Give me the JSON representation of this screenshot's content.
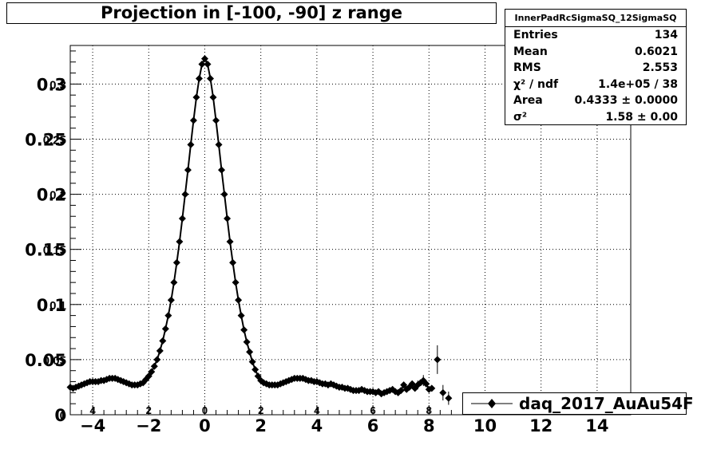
{
  "chart_data": {
    "type": "scatter",
    "title": "Projection in [-100, -90] z range",
    "xlabel": "",
    "ylabel": "",
    "xlim": [
      -4.8,
      15.2
    ],
    "ylim": [
      0,
      0.335
    ],
    "grid": true,
    "legend_position": "bottom-right",
    "x_tick_labels_overlaid": [
      "4",
      "2",
      "0",
      "2",
      "4",
      "6",
      "8",
      "10",
      "12",
      "14"
    ],
    "x_ticks_overlaid": [
      -4,
      -2,
      0,
      2,
      4,
      6,
      8,
      10,
      12,
      14
    ],
    "x_tick_labels": [
      "−4",
      "−2",
      "0",
      "2",
      "4",
      "6",
      "8",
      "10",
      "12",
      "14"
    ],
    "x_ticks": [
      -4,
      -2,
      0,
      2,
      4,
      6,
      8,
      10,
      12,
      14
    ],
    "y_tick_labels_back": [
      "0",
      "0.05",
      "0.1",
      "0.15",
      "0.2",
      "0.25",
      "0.3"
    ],
    "y_tick_labels_front": [
      "0",
      "0.05",
      "0.1",
      "0.15",
      "0.2",
      "0.25",
      "0.3"
    ],
    "y_ticks": [
      0,
      0.05,
      0.1,
      0.15,
      0.2,
      0.25,
      0.3
    ],
    "series": [
      {
        "name": "daq_2017_AuAu54F",
        "color": "#000000",
        "points": [
          [
            -4.8,
            0.025
          ],
          [
            -4.7,
            0.024
          ],
          [
            -4.6,
            0.025
          ],
          [
            -4.5,
            0.026
          ],
          [
            -4.4,
            0.027
          ],
          [
            -4.3,
            0.028
          ],
          [
            -4.2,
            0.029
          ],
          [
            -4.1,
            0.03
          ],
          [
            -4.0,
            0.03
          ],
          [
            -3.9,
            0.03
          ],
          [
            -3.8,
            0.03
          ],
          [
            -3.7,
            0.031
          ],
          [
            -3.6,
            0.031
          ],
          [
            -3.5,
            0.032
          ],
          [
            -3.4,
            0.033
          ],
          [
            -3.3,
            0.033
          ],
          [
            -3.2,
            0.033
          ],
          [
            -3.1,
            0.032
          ],
          [
            -3.0,
            0.031
          ],
          [
            -2.9,
            0.03
          ],
          [
            -2.8,
            0.029
          ],
          [
            -2.7,
            0.028
          ],
          [
            -2.6,
            0.027
          ],
          [
            -2.5,
            0.027
          ],
          [
            -2.4,
            0.027
          ],
          [
            -2.3,
            0.028
          ],
          [
            -2.2,
            0.029
          ],
          [
            -2.1,
            0.032
          ],
          [
            -2.0,
            0.035
          ],
          [
            -1.9,
            0.039
          ],
          [
            -1.8,
            0.044
          ],
          [
            -1.7,
            0.05
          ],
          [
            -1.6,
            0.058
          ],
          [
            -1.5,
            0.067
          ],
          [
            -1.4,
            0.078
          ],
          [
            -1.3,
            0.09
          ],
          [
            -1.2,
            0.104
          ],
          [
            -1.1,
            0.12
          ],
          [
            -1.0,
            0.138
          ],
          [
            -0.9,
            0.157
          ],
          [
            -0.8,
            0.178
          ],
          [
            -0.7,
            0.2
          ],
          [
            -0.6,
            0.222
          ],
          [
            -0.5,
            0.245
          ],
          [
            -0.4,
            0.267
          ],
          [
            -0.3,
            0.288
          ],
          [
            -0.2,
            0.305
          ],
          [
            -0.1,
            0.318
          ],
          [
            0.0,
            0.323
          ],
          [
            0.1,
            0.318
          ],
          [
            0.2,
            0.305
          ],
          [
            0.3,
            0.288
          ],
          [
            0.4,
            0.267
          ],
          [
            0.5,
            0.245
          ],
          [
            0.6,
            0.222
          ],
          [
            0.7,
            0.2
          ],
          [
            0.8,
            0.178
          ],
          [
            0.9,
            0.157
          ],
          [
            1.0,
            0.138
          ],
          [
            1.1,
            0.12
          ],
          [
            1.2,
            0.104
          ],
          [
            1.3,
            0.09
          ],
          [
            1.4,
            0.077
          ],
          [
            1.5,
            0.066
          ],
          [
            1.6,
            0.057
          ],
          [
            1.7,
            0.048
          ],
          [
            1.8,
            0.041
          ],
          [
            1.9,
            0.035
          ],
          [
            2.0,
            0.031
          ],
          [
            2.1,
            0.029
          ],
          [
            2.2,
            0.028
          ],
          [
            2.3,
            0.027
          ],
          [
            2.4,
            0.027
          ],
          [
            2.5,
            0.027
          ],
          [
            2.6,
            0.027
          ],
          [
            2.7,
            0.028
          ],
          [
            2.8,
            0.029
          ],
          [
            2.9,
            0.03
          ],
          [
            3.0,
            0.031
          ],
          [
            3.1,
            0.032
          ],
          [
            3.2,
            0.033
          ],
          [
            3.3,
            0.033
          ],
          [
            3.4,
            0.033
          ],
          [
            3.5,
            0.033
          ],
          [
            3.6,
            0.032
          ],
          [
            3.7,
            0.031
          ],
          [
            3.8,
            0.031
          ],
          [
            3.9,
            0.03
          ],
          [
            4.0,
            0.03
          ],
          [
            4.1,
            0.029
          ],
          [
            4.2,
            0.028
          ],
          [
            4.3,
            0.028
          ],
          [
            4.4,
            0.027
          ],
          [
            4.5,
            0.028
          ],
          [
            4.6,
            0.027
          ],
          [
            4.7,
            0.026
          ],
          [
            4.8,
            0.025
          ],
          [
            4.9,
            0.025
          ],
          [
            5.0,
            0.024
          ],
          [
            5.1,
            0.024
          ],
          [
            5.2,
            0.023
          ],
          [
            5.3,
            0.022
          ],
          [
            5.4,
            0.022
          ],
          [
            5.5,
            0.022
          ],
          [
            5.6,
            0.023
          ],
          [
            5.7,
            0.022
          ],
          [
            5.8,
            0.021
          ],
          [
            5.9,
            0.021
          ],
          [
            6.0,
            0.021
          ],
          [
            6.1,
            0.02
          ],
          [
            6.2,
            0.021
          ],
          [
            6.3,
            0.019
          ],
          [
            6.4,
            0.02
          ],
          [
            6.5,
            0.021
          ],
          [
            6.6,
            0.022
          ],
          [
            6.7,
            0.023
          ],
          [
            6.8,
            0.021
          ],
          [
            6.9,
            0.02
          ],
          [
            7.0,
            0.022
          ],
          [
            7.1,
            0.027
          ],
          [
            7.2,
            0.023
          ],
          [
            7.3,
            0.025
          ],
          [
            7.4,
            0.028
          ],
          [
            7.5,
            0.024
          ],
          [
            7.6,
            0.027
          ],
          [
            7.7,
            0.029
          ],
          [
            7.8,
            0.031
          ],
          [
            7.9,
            0.028
          ],
          [
            8.0,
            0.023
          ],
          [
            8.1,
            0.024
          ],
          [
            8.3,
            0.05
          ],
          [
            8.5,
            0.02
          ],
          [
            8.7,
            0.015
          ]
        ],
        "error_bars": [
          {
            "x": 8.3,
            "y": 0.05,
            "err": 0.013
          },
          {
            "x": 8.5,
            "y": 0.02,
            "err": 0.007
          },
          {
            "x": 8.7,
            "y": 0.015,
            "err": 0.006
          },
          {
            "x": 7.8,
            "y": 0.031,
            "err": 0.005
          },
          {
            "x": 7.6,
            "y": 0.027,
            "err": 0.004
          }
        ]
      }
    ]
  },
  "stats_box": {
    "name": "InnerPadRcSigmaSQ_12SigmaSQ",
    "rows": [
      {
        "key": "Entries",
        "value": "134"
      },
      {
        "key": "Mean",
        "value": "0.6021"
      },
      {
        "key": "RMS",
        "value": "2.553"
      },
      {
        "key": "χ² / ndf",
        "value": "1.4e+05 / 38"
      },
      {
        "key": "Area",
        "value": "0.4333 ± 0.0000"
      },
      {
        "key": "σ²",
        "value": "1.58 ± 0.00"
      }
    ]
  },
  "legend": {
    "label": "daq_2017_AuAu54F"
  }
}
